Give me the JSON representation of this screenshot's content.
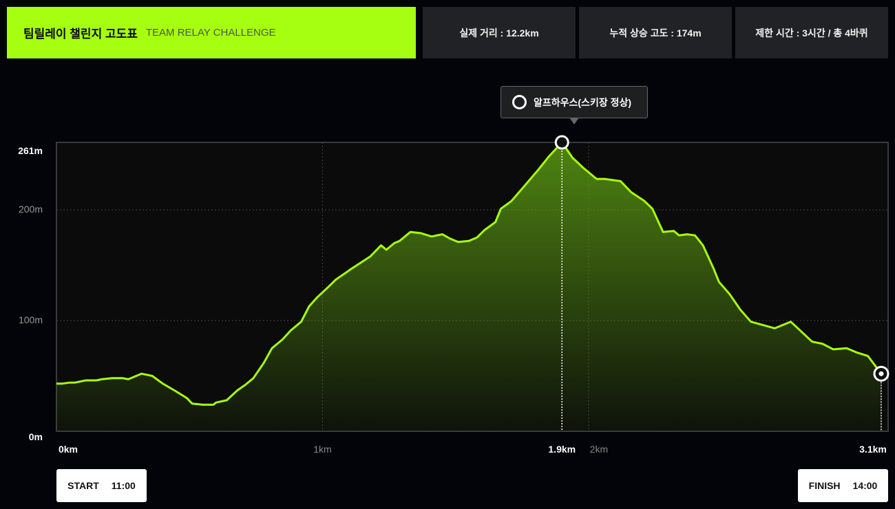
{
  "header": {
    "title_ko": "팀릴레이 챌린지 고도표",
    "title_en": "TEAM RELAY CHALLENGE",
    "stats": [
      "실제 거리 : 12.2km",
      "누적 상승 고도 : 174m",
      "제한 시간 : 3시간 / 총 4바퀴"
    ]
  },
  "tooltip": {
    "label": "알프하우스(스키장 정상)",
    "icon": "ring-icon"
  },
  "start": {
    "label": "START",
    "time": "11:00"
  },
  "finish": {
    "label": "FINISH",
    "time": "14:00"
  },
  "colors": {
    "accent": "#a6ff10",
    "background": "#03030a",
    "card": "#202225"
  },
  "chart_data": {
    "type": "area",
    "title": "팀릴레이 챌린지 고도표",
    "xlabel": "",
    "ylabel": "",
    "xlim": [
      0,
      3.1
    ],
    "ylim": [
      0,
      261
    ],
    "y_ticks": [
      {
        "v": 0,
        "label": "0m"
      },
      {
        "v": 100,
        "label": "100m"
      },
      {
        "v": 200,
        "label": "200m"
      },
      {
        "v": 261,
        "label": "261m"
      }
    ],
    "x_ticks": [
      {
        "v": 0,
        "label": "0km"
      },
      {
        "v": 1,
        "label": "1km"
      },
      {
        "v": 1.9,
        "label": "1.9km"
      },
      {
        "v": 2,
        "label": "2km"
      },
      {
        "v": 3.1,
        "label": "3.1km"
      }
    ],
    "grid": true,
    "peak": {
      "x": 1.9,
      "y": 261
    },
    "finish_point": {
      "x": 3.1,
      "y": 52
    },
    "x": [
      0,
      0.02,
      0.05,
      0.07,
      0.11,
      0.15,
      0.17,
      0.21,
      0.25,
      0.27,
      0.32,
      0.36,
      0.4,
      0.45,
      0.49,
      0.51,
      0.55,
      0.59,
      0.6,
      0.64,
      0.68,
      0.71,
      0.74,
      0.78,
      0.81,
      0.85,
      0.88,
      0.92,
      0.95,
      0.98,
      1.02,
      1.05,
      1.11,
      1.18,
      1.22,
      1.24,
      1.27,
      1.29,
      1.33,
      1.37,
      1.41,
      1.45,
      1.48,
      1.51,
      1.55,
      1.58,
      1.61,
      1.65,
      1.67,
      1.71,
      1.76,
      1.81,
      1.85,
      1.9,
      1.94,
      1.98,
      2.03,
      2.06,
      2.12,
      2.16,
      2.21,
      2.24,
      2.28,
      2.32,
      2.34,
      2.37,
      2.4,
      2.43,
      2.47,
      2.49,
      2.53,
      2.57,
      2.61,
      2.7,
      2.76,
      2.8,
      2.84,
      2.88,
      2.92,
      2.97,
      3.01,
      3.05,
      3.1
    ],
    "y": [
      43,
      43,
      44,
      44,
      46,
      46,
      47,
      48,
      48,
      47,
      52,
      50,
      43,
      36,
      30,
      25,
      24,
      24,
      26,
      28,
      37,
      42,
      48,
      62,
      75,
      83,
      91,
      99,
      113,
      121,
      130,
      137,
      147,
      158,
      168,
      164,
      170,
      172,
      180,
      179,
      176,
      178,
      174,
      171,
      172,
      175,
      182,
      189,
      201,
      208,
      222,
      236,
      248,
      261,
      247,
      238,
      228,
      228,
      226,
      216,
      208,
      201,
      180,
      181,
      177,
      178,
      177,
      168,
      147,
      135,
      124,
      110,
      99,
      93,
      99,
      90,
      81,
      79,
      74,
      75,
      71,
      68,
      52
    ]
  }
}
